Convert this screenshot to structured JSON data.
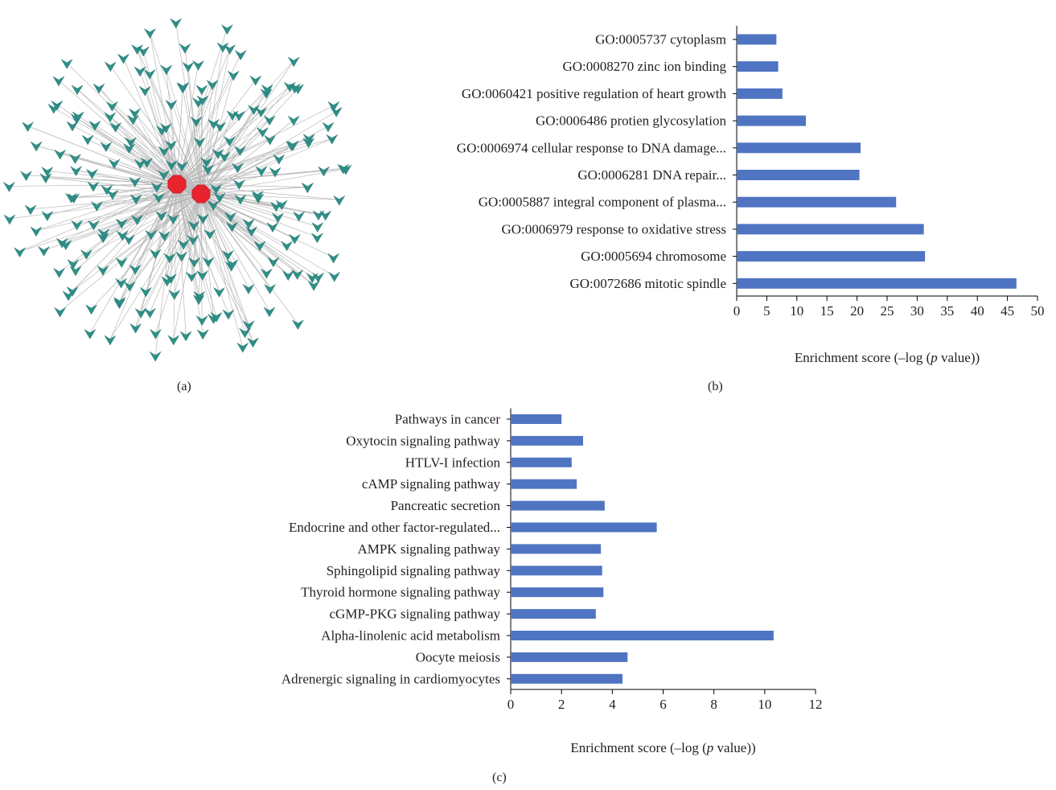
{
  "panels": {
    "a": {
      "label": "(a)"
    },
    "b": {
      "label": "(b)"
    },
    "c": {
      "label": "(c)"
    }
  },
  "network": {
    "hub_color": "#e8232e",
    "leaf_color": "#2f8f87",
    "edge_color": "#b8b8b8",
    "hub_count": 2,
    "leaf_count": 230
  },
  "chart_data": [
    {
      "panel": "b",
      "type": "bar",
      "orientation": "horizontal",
      "categories": [
        "GO:0005737 cytoplasm",
        "GO:0008270 zinc ion binding",
        "GO:0060421 positive regulation of heart growth",
        "GO:0006486 protien glycosylation",
        "GO:0006974 cellular response to DNA damage...",
        "GO:0006281 DNA repair...",
        "GO:0005887 integral component of plasma...",
        "GO:0006979 response to oxidative stress",
        "GO:0005694 chromosome",
        "GO:0072686 mitotic spindle"
      ],
      "values": [
        6.6,
        6.9,
        7.6,
        11.5,
        20.6,
        20.4,
        26.5,
        31.1,
        31.3,
        46.5
      ],
      "xlim": [
        0,
        50
      ],
      "xticks": [
        0,
        5,
        10,
        15,
        20,
        25,
        30,
        35,
        40,
        45,
        50
      ],
      "xlabel_pre": "Enrichment score (–log (",
      "xlabel_italic": "p",
      "xlabel_post": " value))",
      "bar_color": "#4f74c2",
      "grid": false
    },
    {
      "panel": "c",
      "type": "bar",
      "orientation": "horizontal",
      "categories": [
        "Pathways in cancer",
        "Oxytocin signaling pathway",
        "HTLV-I infection",
        "cAMP signaling pathway",
        "Pancreatic secretion",
        "Endocrine and other factor-regulated...",
        "AMPK signaling pathway",
        "Sphingolipid signaling pathway",
        "Thyroid hormone signaling pathway",
        "cGMP-PKG signaling pathway",
        "Alpha-linolenic acid metabolism",
        "Oocyte meiosis",
        "Adrenergic signaling in cardiomyocytes"
      ],
      "values": [
        2.0,
        2.85,
        2.4,
        2.6,
        3.7,
        5.75,
        3.55,
        3.6,
        3.65,
        3.35,
        10.35,
        4.6,
        4.4
      ],
      "xlim": [
        0,
        12
      ],
      "xticks": [
        0,
        2,
        4,
        6,
        8,
        10,
        12
      ],
      "xlabel_pre": "Enrichment score (–log (",
      "xlabel_italic": "p",
      "xlabel_post": " value))",
      "bar_color": "#4f74c2",
      "grid": false
    }
  ]
}
